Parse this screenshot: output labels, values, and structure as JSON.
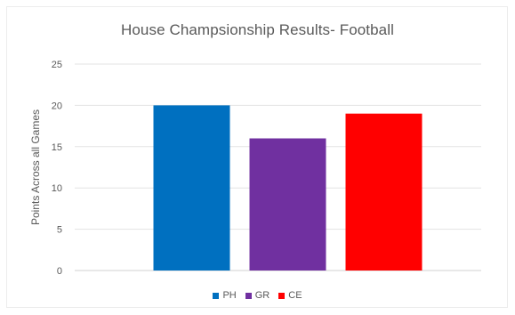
{
  "chart_data": {
    "type": "bar",
    "title": "House Champsionship Results- Football",
    "xlabel": "",
    "ylabel": "Points Across all Games",
    "categories": [
      "PH",
      "GR",
      "CE"
    ],
    "values": [
      20,
      16,
      19
    ],
    "colors": [
      "#0070c0",
      "#7030a0",
      "#ff0000"
    ],
    "ylim": [
      0,
      25
    ],
    "yticks": [
      0,
      5,
      10,
      15,
      20,
      25
    ],
    "grid": true,
    "legend_position": "bottom",
    "legend": [
      {
        "name": "PH",
        "color": "#0070c0"
      },
      {
        "name": "GR",
        "color": "#7030a0"
      },
      {
        "name": "CE",
        "color": "#ff0000"
      }
    ]
  }
}
